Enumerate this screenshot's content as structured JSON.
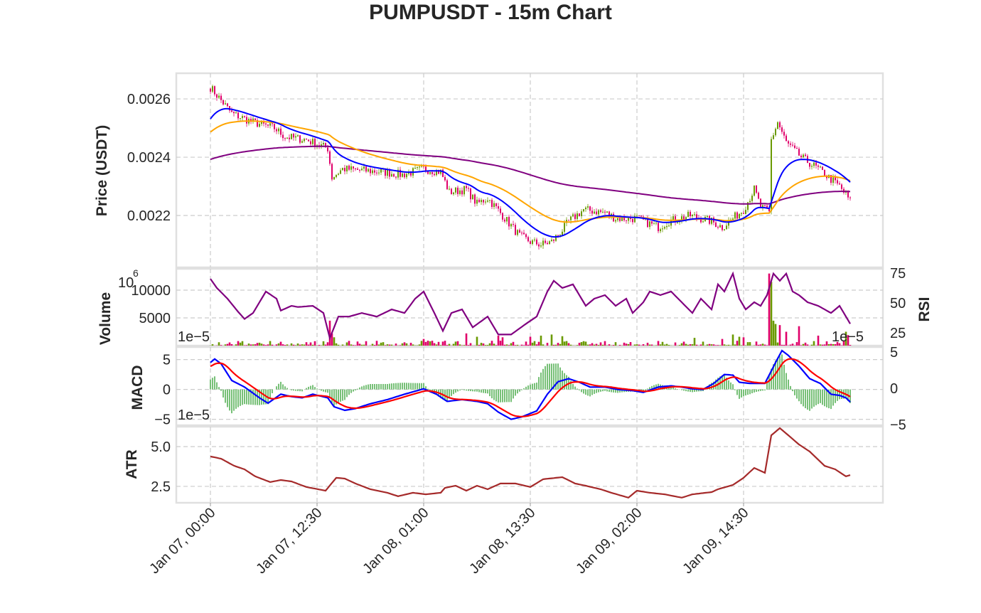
{
  "chart_data": {
    "title": "PUMPUSDT - 15m Chart",
    "type": "line",
    "interval_minutes": 15,
    "bars": 300,
    "x_tick_labels": [
      "Jan 07, 00:00",
      "Jan 07, 12:30",
      "Jan 08, 01:00",
      "Jan 08, 13:30",
      "Jan 09, 02:00",
      "Jan 09, 14:30"
    ],
    "x_tick_bars": [
      0,
      50,
      100,
      150,
      200,
      250
    ],
    "colors": {
      "up": "#6a9a00",
      "down": "#e0006a",
      "ema_fast": "#0000ff",
      "ema_mid": "#ffa500",
      "ema_slow": "#800080",
      "rsi": "#800080",
      "macd": "#0000ff",
      "signal": "#ff0000",
      "hist": "#77c077",
      "atr": "#a52a2a"
    },
    "price": {
      "ylabel": "Price (USDT)",
      "ylim": [
        0.002022,
        0.002688
      ],
      "y_ticks": [
        0.0022,
        0.0024,
        0.0026
      ],
      "y_tick_labels": [
        "0.0022",
        "0.0024",
        "0.0026"
      ],
      "close_points": [
        [
          0,
          0.00264
        ],
        [
          10,
          0.00255
        ],
        [
          20,
          0.00252
        ],
        [
          30,
          0.0025
        ],
        [
          35,
          0.00247
        ],
        [
          45,
          0.00246
        ],
        [
          55,
          0.00243
        ],
        [
          57,
          0.00233
        ],
        [
          62,
          0.00236
        ],
        [
          80,
          0.00235
        ],
        [
          90,
          0.00234
        ],
        [
          100,
          0.00236
        ],
        [
          108,
          0.00235
        ],
        [
          112,
          0.00228
        ],
        [
          120,
          0.00229
        ],
        [
          125,
          0.00224
        ],
        [
          130,
          0.00226
        ],
        [
          137,
          0.0022
        ],
        [
          145,
          0.00213
        ],
        [
          150,
          0.00211
        ],
        [
          155,
          0.0021
        ],
        [
          160,
          0.00211
        ],
        [
          165,
          0.00215
        ],
        [
          168,
          0.00218
        ],
        [
          175,
          0.00222
        ],
        [
          185,
          0.00221
        ],
        [
          190,
          0.00219
        ],
        [
          200,
          0.00219
        ],
        [
          210,
          0.00216
        ],
        [
          215,
          0.00218
        ],
        [
          225,
          0.0022
        ],
        [
          235,
          0.00218
        ],
        [
          240,
          0.00216
        ],
        [
          245,
          0.00219
        ],
        [
          250,
          0.00222
        ],
        [
          255,
          0.00229
        ],
        [
          258,
          0.00223
        ],
        [
          262,
          0.00221
        ],
        [
          263,
          0.00246
        ],
        [
          266,
          0.00252
        ],
        [
          270,
          0.00245
        ],
        [
          277,
          0.0024
        ],
        [
          285,
          0.00236
        ],
        [
          290,
          0.00233
        ],
        [
          295,
          0.0023
        ],
        [
          300,
          0.00225
        ]
      ],
      "ema_fast": {
        "span": 20,
        "start": 0.00252
      },
      "ema_mid": {
        "span": 50,
        "start": 0.00248
      },
      "ema_slow": {
        "span": 200,
        "start": 0.00239
      }
    },
    "volume": {
      "ylabel": "Volume",
      "scale_label": "10",
      "scale_exp": "6",
      "offset_label": "1e−5",
      "ylim": [
        0,
        13850
      ],
      "y_ticks": [
        5000,
        10000
      ],
      "y_tick_labels": [
        "5000",
        "10000"
      ],
      "spikes": [
        [
          56,
          4500
        ],
        [
          57,
          2200
        ],
        [
          58,
          1500
        ],
        [
          100,
          1200
        ],
        [
          120,
          2200
        ],
        [
          125,
          1600
        ],
        [
          135,
          1800
        ],
        [
          137,
          1500
        ],
        [
          150,
          1600
        ],
        [
          155,
          1800
        ],
        [
          160,
          2000
        ],
        [
          165,
          1700
        ],
        [
          227,
          1400
        ],
        [
          240,
          1200
        ],
        [
          245,
          2000
        ],
        [
          248,
          1600
        ],
        [
          250,
          1500
        ],
        [
          262,
          13000
        ],
        [
          263,
          11500
        ],
        [
          264,
          4500
        ],
        [
          265,
          3900
        ],
        [
          267,
          3700
        ],
        [
          270,
          2500
        ],
        [
          276,
          3500
        ],
        [
          285,
          1800
        ],
        [
          298,
          2500
        ],
        [
          299,
          1900
        ]
      ]
    },
    "rsi": {
      "ylabel": "RSI",
      "ylim": [
        13.7,
        78
      ],
      "y_ticks": [
        25,
        50,
        75
      ],
      "y_tick_labels": [
        "25",
        "50",
        "75"
      ],
      "points": [
        [
          0,
          69.6
        ],
        [
          3,
          62
        ],
        [
          8,
          53
        ],
        [
          13,
          42
        ],
        [
          16,
          36
        ],
        [
          20,
          41
        ],
        [
          23,
          50
        ],
        [
          26,
          59
        ],
        [
          31,
          53
        ],
        [
          33,
          43
        ],
        [
          38,
          47
        ],
        [
          41,
          46
        ],
        [
          48,
          47
        ],
        [
          53,
          41
        ],
        [
          56,
          20
        ],
        [
          60,
          38
        ],
        [
          65,
          38
        ],
        [
          71,
          41
        ],
        [
          78,
          38
        ],
        [
          85,
          44
        ],
        [
          91,
          41
        ],
        [
          96,
          53
        ],
        [
          100,
          59
        ],
        [
          105,
          41
        ],
        [
          109,
          26
        ],
        [
          113,
          41
        ],
        [
          118,
          44
        ],
        [
          123,
          29
        ],
        [
          130,
          38
        ],
        [
          135,
          23
        ],
        [
          141,
          23
        ],
        [
          148,
          32
        ],
        [
          153,
          38
        ],
        [
          158,
          59
        ],
        [
          161,
          68
        ],
        [
          165,
          62
        ],
        [
          170,
          65
        ],
        [
          173,
          56
        ],
        [
          176,
          47
        ],
        [
          180,
          53
        ],
        [
          185,
          56
        ],
        [
          190,
          47
        ],
        [
          195,
          53
        ],
        [
          198,
          41
        ],
        [
          203,
          50
        ],
        [
          206,
          59
        ],
        [
          211,
          56
        ],
        [
          216,
          59
        ],
        [
          221,
          50
        ],
        [
          226,
          41
        ],
        [
          230,
          53
        ],
        [
          235,
          44
        ],
        [
          238,
          65
        ],
        [
          241,
          59
        ],
        [
          245,
          74
        ],
        [
          248,
          53
        ],
        [
          251,
          44
        ],
        [
          255,
          50
        ],
        [
          258,
          47
        ],
        [
          261,
          56
        ],
        [
          264,
          74
        ],
        [
          267,
          68
        ],
        [
          270,
          74
        ],
        [
          273,
          59
        ],
        [
          276,
          56
        ],
        [
          280,
          50
        ],
        [
          285,
          47
        ],
        [
          288,
          44
        ],
        [
          291,
          41
        ],
        [
          295,
          47
        ],
        [
          298,
          38
        ],
        [
          300,
          32
        ]
      ]
    },
    "macd": {
      "ylabel": "MACD",
      "offset_label": "1e−5",
      "ylim": [
        -6,
        7.1
      ],
      "y_ticks": [
        -5,
        0,
        5
      ],
      "y_tick_labels": [
        "−5",
        "0",
        "5"
      ],
      "right_tick_labels": [
        "−5",
        "0",
        "5"
      ],
      "signal": {
        "span": 9,
        "start": 3.7
      },
      "macd_points": [
        [
          0,
          4.5
        ],
        [
          2,
          5.1
        ],
        [
          5,
          4.3
        ],
        [
          10,
          1.5
        ],
        [
          16,
          0.4
        ],
        [
          23,
          -1.4
        ],
        [
          27,
          -2.3
        ],
        [
          33,
          -0.8
        ],
        [
          38,
          -1.2
        ],
        [
          43,
          -1.4
        ],
        [
          48,
          -0.8
        ],
        [
          55,
          -1.4
        ],
        [
          58,
          -2.9
        ],
        [
          63,
          -3.5
        ],
        [
          68,
          -3.2
        ],
        [
          75,
          -2.4
        ],
        [
          83,
          -1.7
        ],
        [
          91,
          -0.8
        ],
        [
          100,
          0.1
        ],
        [
          106,
          -0.8
        ],
        [
          111,
          -2
        ],
        [
          118,
          -1.7
        ],
        [
          125,
          -2
        ],
        [
          130,
          -2.4
        ],
        [
          135,
          -3.8
        ],
        [
          141,
          -5
        ],
        [
          146,
          -4.6
        ],
        [
          153,
          -3.6
        ],
        [
          158,
          -0.8
        ],
        [
          163,
          1.3
        ],
        [
          168,
          1.8
        ],
        [
          173,
          1.2
        ],
        [
          178,
          0.4
        ],
        [
          185,
          0.4
        ],
        [
          191,
          0
        ],
        [
          198,
          -0.2
        ],
        [
          203,
          -0.5
        ],
        [
          210,
          0.4
        ],
        [
          216,
          0.6
        ],
        [
          221,
          0.4
        ],
        [
          226,
          0.1
        ],
        [
          231,
          0
        ],
        [
          236,
          1
        ],
        [
          241,
          2.5
        ],
        [
          245,
          2.4
        ],
        [
          248,
          1.2
        ],
        [
          253,
          1
        ],
        [
          260,
          1
        ],
        [
          265,
          4.5
        ],
        [
          268,
          6.5
        ],
        [
          271,
          5.7
        ],
        [
          276,
          3.9
        ],
        [
          281,
          1.8
        ],
        [
          286,
          1
        ],
        [
          291,
          -0.8
        ],
        [
          295,
          -1
        ],
        [
          298,
          -1.4
        ],
        [
          300,
          -2.1
        ]
      ]
    },
    "atr": {
      "ylabel": "ATR",
      "ylim": [
        1.47,
        6.25
      ],
      "y_ticks": [
        2.5,
        5.0
      ],
      "y_tick_labels": [
        "2.5",
        "5.0"
      ],
      "points": [
        [
          0,
          4.38
        ],
        [
          5,
          4.24
        ],
        [
          11,
          3.8
        ],
        [
          16,
          3.57
        ],
        [
          21,
          3.13
        ],
        [
          28,
          2.77
        ],
        [
          33,
          2.9
        ],
        [
          38,
          2.81
        ],
        [
          45,
          2.46
        ],
        [
          54,
          2.23
        ],
        [
          59,
          3.04
        ],
        [
          63,
          2.99
        ],
        [
          68,
          2.68
        ],
        [
          75,
          2.32
        ],
        [
          83,
          2.1
        ],
        [
          88,
          1.88
        ],
        [
          95,
          2.1
        ],
        [
          101,
          2.0
        ],
        [
          108,
          2.1
        ],
        [
          110,
          2.41
        ],
        [
          115,
          2.54
        ],
        [
          120,
          2.23
        ],
        [
          125,
          2.54
        ],
        [
          130,
          2.32
        ],
        [
          136,
          2.68
        ],
        [
          143,
          2.68
        ],
        [
          150,
          2.46
        ],
        [
          156,
          2.95
        ],
        [
          165,
          3.08
        ],
        [
          171,
          2.68
        ],
        [
          176,
          2.54
        ],
        [
          183,
          2.32
        ],
        [
          188,
          2.1
        ],
        [
          196,
          1.79
        ],
        [
          200,
          2.23
        ],
        [
          206,
          2.1
        ],
        [
          213,
          2.0
        ],
        [
          221,
          1.79
        ],
        [
          226,
          2.0
        ],
        [
          235,
          2.14
        ],
        [
          238,
          2.32
        ],
        [
          245,
          2.59
        ],
        [
          250,
          3.04
        ],
        [
          255,
          3.66
        ],
        [
          260,
          3.35
        ],
        [
          263,
          5.71
        ],
        [
          267,
          6.16
        ],
        [
          271,
          5.71
        ],
        [
          276,
          5.13
        ],
        [
          281,
          4.69
        ],
        [
          288,
          3.79
        ],
        [
          293,
          3.57
        ],
        [
          298,
          3.13
        ],
        [
          300,
          3.21
        ]
      ]
    }
  }
}
